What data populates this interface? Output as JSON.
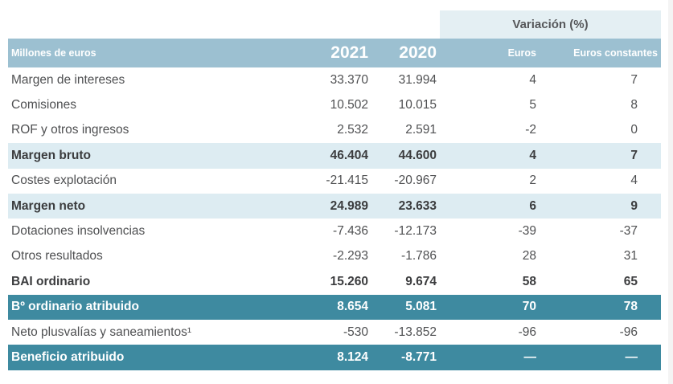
{
  "colors": {
    "header_bg": "#9cc0d1",
    "variation_panel_bg": "#e4eff3",
    "subtotal_highlight_bg": "#ddecf2",
    "teal_row_bg": "#3e8aa0",
    "body_text": "#4f5052",
    "bold_text": "#3b3c3e",
    "header_text": "#ffffff"
  },
  "table": {
    "variation_header": "Variación (%)",
    "header": {
      "label": "Millones de euros",
      "col_2021": "2021",
      "col_2020": "2020",
      "col_euros": "Euros",
      "col_euros_constantes": "Euros constantes"
    },
    "rows": [
      {
        "label": "Margen de intereses",
        "y2021": "33.370",
        "y2020": "31.994",
        "euros": "4",
        "constantes": "7",
        "style": "normal"
      },
      {
        "label": "Comisiones",
        "y2021": "10.502",
        "y2020": "10.015",
        "euros": "5",
        "constantes": "8",
        "style": "normal"
      },
      {
        "label": "ROF y otros ingresos",
        "y2021": "2.532",
        "y2020": "2.591",
        "euros": "-2",
        "constantes": "0",
        "style": "normal"
      },
      {
        "label": "Margen bruto",
        "y2021": "46.404",
        "y2020": "44.600",
        "euros": "4",
        "constantes": "7",
        "style": "subtotal"
      },
      {
        "label": "Costes explotación",
        "y2021": "-21.415",
        "y2020": "-20.967",
        "euros": "2",
        "constantes": "4",
        "style": "normal"
      },
      {
        "label": "Margen neto",
        "y2021": "24.989",
        "y2020": "23.633",
        "euros": "6",
        "constantes": "9",
        "style": "subtotal"
      },
      {
        "label": "Dotaciones insolvencias",
        "y2021": "-7.436",
        "y2020": "-12.173",
        "euros": "-39",
        "constantes": "-37",
        "style": "normal"
      },
      {
        "label": "Otros resultados",
        "y2021": "-2.293",
        "y2020": "-1.786",
        "euros": "28",
        "constantes": "31",
        "style": "normal"
      },
      {
        "label": "BAI ordinario",
        "y2021": "15.260",
        "y2020": "9.674",
        "euros": "58",
        "constantes": "65",
        "style": "bold"
      },
      {
        "label": "Bº ordinario atribuido",
        "y2021": "8.654",
        "y2020": "5.081",
        "euros": "70",
        "constantes": "78",
        "style": "teal"
      },
      {
        "label": "Neto plusvalías y saneamientos¹",
        "y2021": "-530",
        "y2020": "-13.852",
        "euros": "-96",
        "constantes": "-96",
        "style": "normal"
      },
      {
        "label": "Beneficio atribuido",
        "y2021": "8.124",
        "y2020": "-8.771",
        "euros": "—",
        "constantes": "—",
        "style": "teal"
      }
    ]
  }
}
